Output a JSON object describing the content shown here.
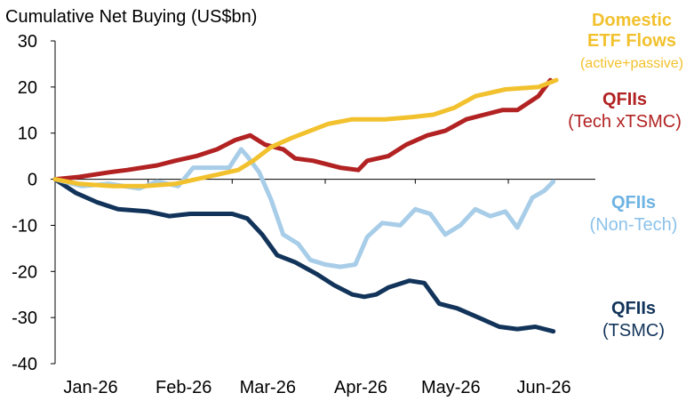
{
  "chart_data": {
    "type": "line",
    "title": "Cumulative Net Buying (US$bn)",
    "xlabel": "",
    "ylabel": "",
    "ylim": [
      -40,
      30
    ],
    "yticks": [
      30,
      20,
      10,
      0,
      -10,
      -20,
      -30,
      -40
    ],
    "x_tick_labels": [
      "Jan-26",
      "Feb-26",
      "Mar-26",
      "Apr-26",
      "May-26",
      "Jun-26"
    ],
    "x_tick_dates": [
      "2026-01-01",
      "2026-02-01",
      "2026-03-01",
      "2026-04-01",
      "2026-05-01",
      "2026-06-01"
    ],
    "x_range": [
      "2026-01-01",
      "2026-06-30"
    ],
    "grid": false,
    "legend": "direct labels on right",
    "colors": {
      "domestic_etf": "#F2C12E",
      "qfii_tech_xtsmc": "#B22222",
      "qfii_non_tech": "#A8CDE8",
      "qfii_tsmc": "#12345A"
    },
    "series": [
      {
        "key": "domestic_etf",
        "name": "Domestic ETF Flows (active+passive)",
        "labels": [
          "Domestic",
          "ETF Flows",
          "(active+passive)"
        ],
        "color": "#F2C12E",
        "x": [
          "2026-01-01",
          "2026-01-09",
          "2026-01-20",
          "2026-01-31",
          "2026-02-10",
          "2026-02-17",
          "2026-02-24",
          "2026-03-03",
          "2026-03-08",
          "2026-03-14",
          "2026-03-21",
          "2026-04-02",
          "2026-04-10",
          "2026-04-21",
          "2026-04-30",
          "2026-05-07",
          "2026-05-14",
          "2026-05-21",
          "2026-05-31",
          "2026-06-11",
          "2026-06-17"
        ],
        "y": [
          0,
          -1,
          -1.5,
          -1.5,
          -1,
          0,
          1,
          2,
          4,
          7,
          9,
          12,
          13,
          13,
          13.5,
          14,
          15.5,
          18,
          19.5,
          20,
          21.5
        ]
      },
      {
        "key": "qfii_tech_xtsmc",
        "name": "QFIIs (Tech xTSMC)",
        "labels": [
          "QFIIs",
          "(Tech xTSMC)"
        ],
        "color": "#B22222",
        "x": [
          "2026-01-01",
          "2026-01-09",
          "2026-01-19",
          "2026-01-25",
          "2026-02-04",
          "2026-02-10",
          "2026-02-17",
          "2026-02-24",
          "2026-03-02",
          "2026-03-07",
          "2026-03-12",
          "2026-03-18",
          "2026-03-22",
          "2026-03-28",
          "2026-04-06",
          "2026-04-12",
          "2026-04-15",
          "2026-04-22",
          "2026-04-28",
          "2026-05-05",
          "2026-05-11",
          "2026-05-18",
          "2026-05-24",
          "2026-05-30",
          "2026-06-04",
          "2026-06-11",
          "2026-06-15"
        ],
        "y": [
          0,
          0.5,
          1.5,
          2,
          3,
          4,
          5,
          6.5,
          8.5,
          9.5,
          7.5,
          6.5,
          4.5,
          4,
          2.5,
          2,
          4,
          5,
          7.5,
          9.5,
          10.5,
          13,
          14,
          15,
          15,
          18,
          21.5
        ]
      },
      {
        "key": "qfii_non_tech",
        "name": "QFIIs (Non-Tech)",
        "labels": [
          "QFIIs",
          "(Non-Tech)"
        ],
        "color": "#A8CDE8",
        "x": [
          "2026-01-01",
          "2026-01-10",
          "2026-01-19",
          "2026-01-29",
          "2026-02-04",
          "2026-02-11",
          "2026-02-16",
          "2026-02-23",
          "2026-02-28",
          "2026-03-04",
          "2026-03-06",
          "2026-03-10",
          "2026-03-14",
          "2026-03-18",
          "2026-03-23",
          "2026-03-27",
          "2026-04-01",
          "2026-04-06",
          "2026-04-11",
          "2026-04-15",
          "2026-04-20",
          "2026-04-26",
          "2026-05-01",
          "2026-05-06",
          "2026-05-11",
          "2026-05-16",
          "2026-05-21",
          "2026-05-26",
          "2026-05-31",
          "2026-06-04",
          "2026-06-09",
          "2026-06-13",
          "2026-06-16"
        ],
        "y": [
          0,
          -1.5,
          -1,
          -2,
          -0.5,
          -1.5,
          2.5,
          2.5,
          2.5,
          6.5,
          5,
          1.5,
          -4.5,
          -12,
          -14,
          -17.5,
          -18.5,
          -19,
          -18.5,
          -12.5,
          -9.5,
          -10,
          -6.5,
          -7.5,
          -12,
          -10,
          -6.5,
          -8,
          -7,
          -10.5,
          -4,
          -2.5,
          -0.5
        ]
      },
      {
        "key": "qfii_tsmc",
        "name": "QFIIs (TSMC)",
        "labels": [
          "QFIIs",
          "(TSMC)"
        ],
        "color": "#12345A",
        "x": [
          "2026-01-01",
          "2026-01-08",
          "2026-01-15",
          "2026-01-22",
          "2026-02-01",
          "2026-02-08",
          "2026-02-15",
          "2026-02-22",
          "2026-03-01",
          "2026-03-06",
          "2026-03-11",
          "2026-03-16",
          "2026-03-22",
          "2026-03-29",
          "2026-04-04",
          "2026-04-10",
          "2026-04-14",
          "2026-04-18",
          "2026-04-22",
          "2026-04-29",
          "2026-05-04",
          "2026-05-09",
          "2026-05-15",
          "2026-05-22",
          "2026-05-29",
          "2026-06-04",
          "2026-06-10",
          "2026-06-16"
        ],
        "y": [
          0,
          -3,
          -5,
          -6.5,
          -7,
          -8,
          -7.5,
          -7.5,
          -7.5,
          -8.5,
          -12,
          -16.5,
          -18,
          -20.5,
          -23,
          -25,
          -25.5,
          -25,
          -23.5,
          -22,
          -22.5,
          -27,
          -28,
          -30,
          -32,
          -32.5,
          -32,
          -33
        ]
      }
    ],
    "annotations": {
      "domestic": {
        "title_lines": [
          "Domestic",
          "ETF Flows"
        ],
        "sub": "(active+passive)"
      },
      "tech": {
        "title": "QFIIs",
        "sub": "(Tech xTSMC)"
      },
      "nontech": {
        "title": "QFIIs",
        "sub": "(Non-Tech)"
      },
      "tsmc": {
        "title": "QFIIs",
        "sub": "(TSMC)"
      }
    }
  }
}
